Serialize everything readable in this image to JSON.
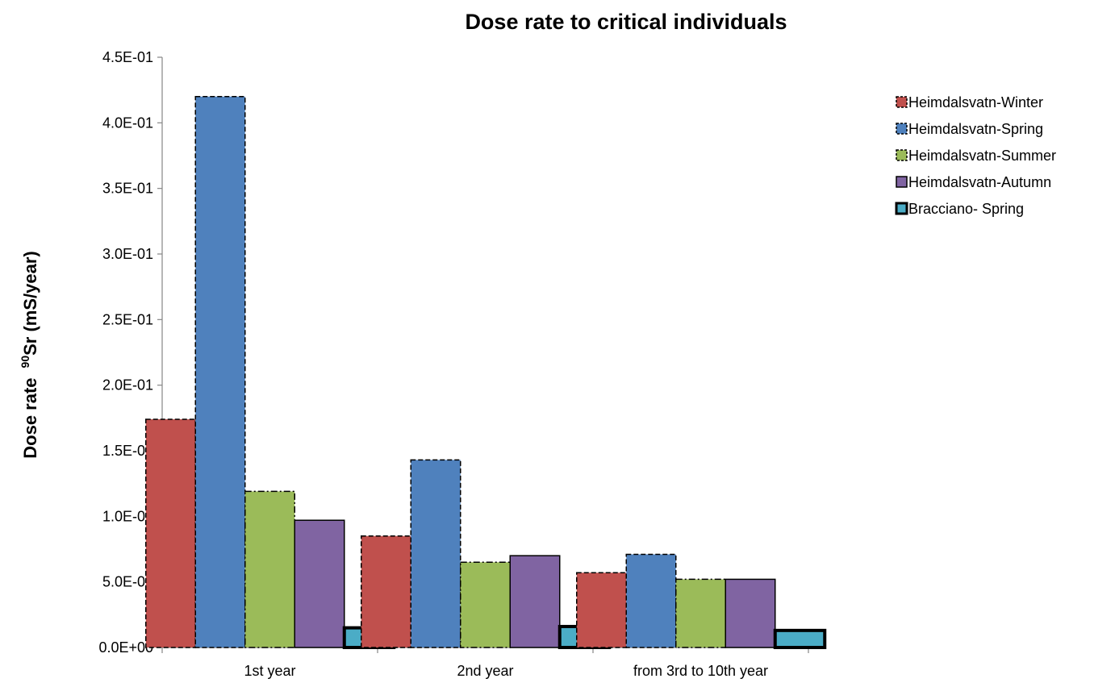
{
  "chart_data": {
    "type": "bar",
    "title": "Dose rate to critical individuals",
    "ylabel_prefix": "Dose rate",
    "ylabel_sup": "90",
    "ylabel_suffix": "Sr (mS/year)",
    "xlabel": "",
    "ylim": [
      0,
      0.45
    ],
    "ytick_values": [
      0,
      0.05,
      0.1,
      0.15,
      0.2,
      0.25,
      0.3,
      0.35,
      0.4,
      0.45
    ],
    "ytick_labels": [
      "0.0E+00",
      "5.0E-02",
      "1.0E-01",
      "1.5E-01",
      "2.0E-01",
      "2.5E-01",
      "3.0E-01",
      "3.5E-01",
      "4.0E-01",
      "4.5E-01"
    ],
    "categories": [
      "1st year",
      "2nd year",
      "from 3rd to 10th year"
    ],
    "legend_position": "top-right",
    "grid": false,
    "series": [
      {
        "name": "Heimdalsvatn-Winter",
        "color": "#C0504D",
        "border": "dashed",
        "values": [
          0.174,
          0.085,
          0.057
        ]
      },
      {
        "name": "Heimdalsvatn-Spring",
        "color": "#4F81BD",
        "border": "dashed",
        "values": [
          0.42,
          0.143,
          0.071
        ]
      },
      {
        "name": "Heimdalsvatn-Summer",
        "color": "#9BBB59",
        "border": "dashdot",
        "values": [
          0.119,
          0.065,
          0.052
        ]
      },
      {
        "name": "Heimdalsvatn-Autumn",
        "color": "#8064A2",
        "border": "solid",
        "values": [
          0.097,
          0.07,
          0.052
        ]
      },
      {
        "name": "Bracciano- Spring",
        "color": "#4BACC6",
        "border": "thick",
        "values": [
          0.015,
          0.016,
          0.013
        ]
      }
    ]
  }
}
